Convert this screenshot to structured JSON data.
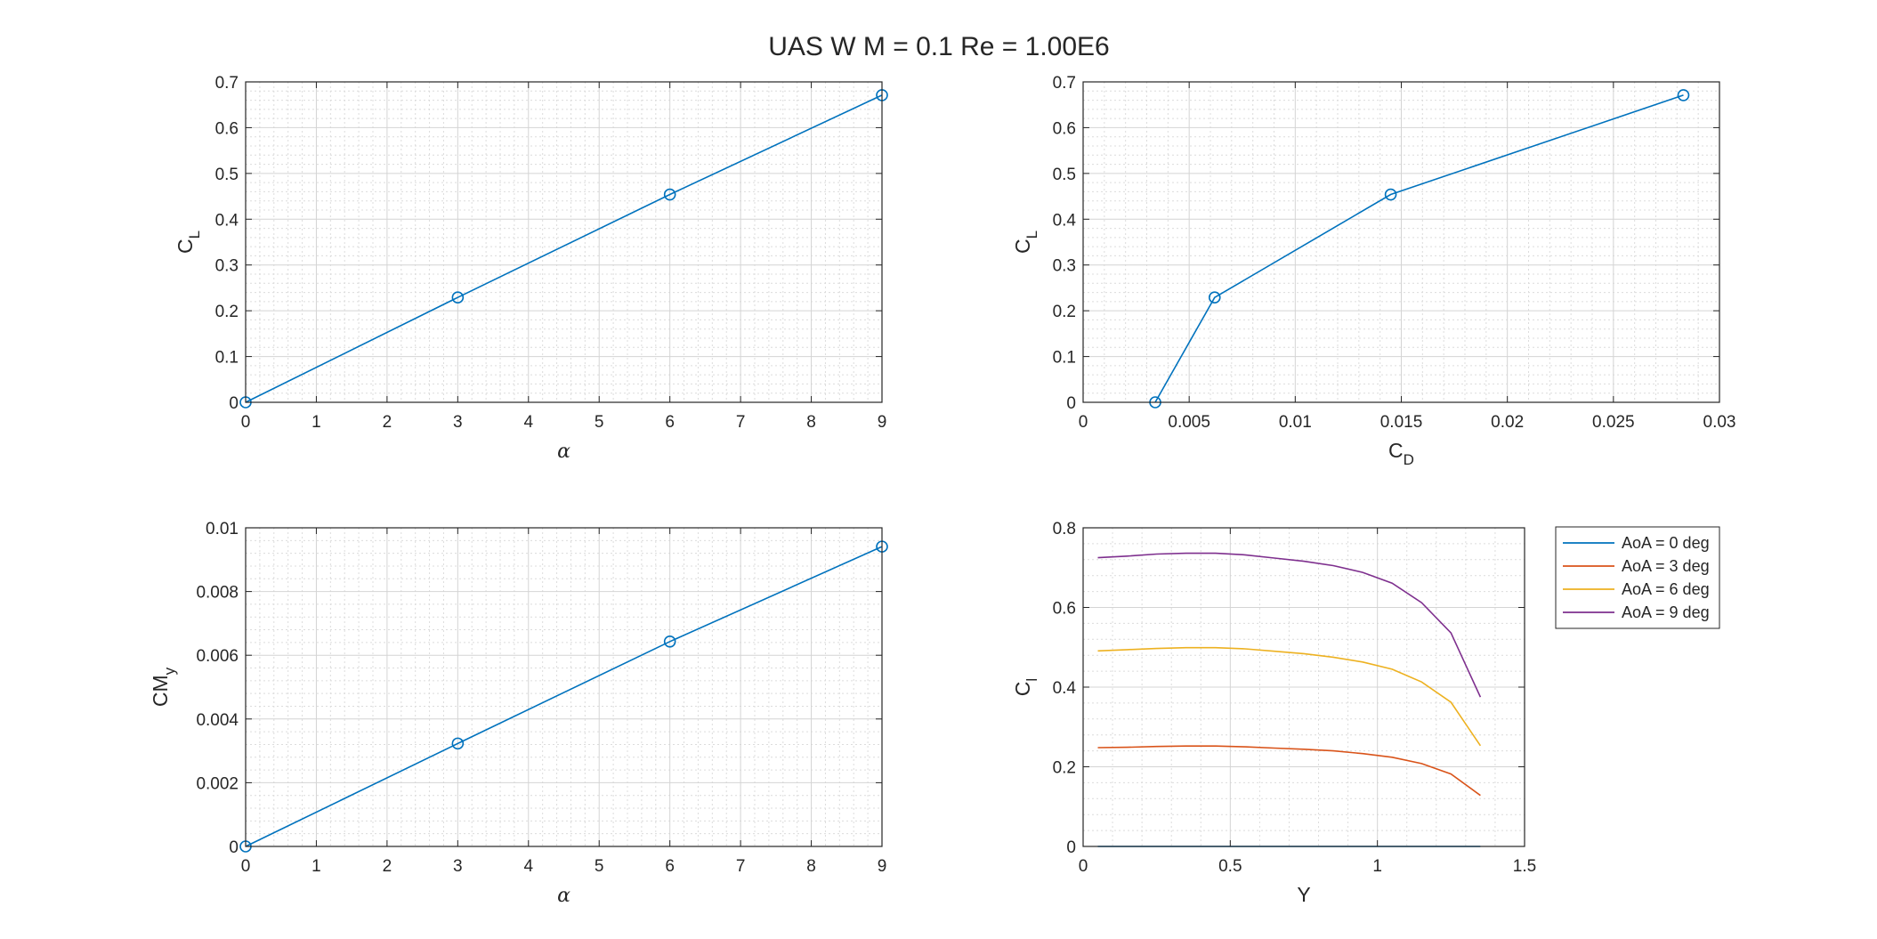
{
  "figure": {
    "title": "UAS  W  M = 0.1  Re = 1.00E6"
  },
  "chart_data": [
    {
      "id": "cl-alpha",
      "type": "line",
      "xlim": [
        0,
        9
      ],
      "ylim": [
        0,
        0.7
      ],
      "xticks": [
        "0",
        "1",
        "2",
        "3",
        "4",
        "5",
        "6",
        "7",
        "8",
        "9"
      ],
      "yticks": [
        "0",
        "0.1",
        "0.2",
        "0.3",
        "0.4",
        "0.5",
        "0.6",
        "0.7"
      ],
      "xlabel": "α",
      "ylabel": {
        "main": "C",
        "sub": "L"
      },
      "grid": true,
      "minor_grid": true,
      "series": [
        {
          "x": [
            0,
            3,
            6,
            9
          ],
          "y": [
            0,
            0.229,
            0.454,
            0.671
          ],
          "color": "#0072BD",
          "marker": "circle"
        }
      ]
    },
    {
      "id": "cl-cd",
      "type": "line",
      "xlim": [
        0,
        0.03
      ],
      "ylim": [
        0,
        0.7
      ],
      "xticks": [
        "0",
        "0.005",
        "0.01",
        "0.015",
        "0.02",
        "0.025",
        "0.03"
      ],
      "yticks": [
        "0",
        "0.1",
        "0.2",
        "0.3",
        "0.4",
        "0.5",
        "0.6",
        "0.7"
      ],
      "xlabel": {
        "main": "C",
        "sub": "D"
      },
      "ylabel": {
        "main": "C",
        "sub": "L"
      },
      "grid": true,
      "minor_grid": true,
      "series": [
        {
          "x": [
            0.0034,
            0.0062,
            0.0145,
            0.0283
          ],
          "y": [
            0,
            0.229,
            0.454,
            0.671
          ],
          "color": "#0072BD",
          "marker": "circle"
        }
      ]
    },
    {
      "id": "cmy-alpha",
      "type": "line",
      "xlim": [
        0,
        9
      ],
      "ylim": [
        0,
        0.01
      ],
      "xticks": [
        "0",
        "1",
        "2",
        "3",
        "4",
        "5",
        "6",
        "7",
        "8",
        "9"
      ],
      "yticks": [
        "0",
        "0.002",
        "0.004",
        "0.006",
        "0.008",
        "0.01"
      ],
      "xlabel": "α",
      "ylabel": {
        "main": "CM",
        "sub": "y"
      },
      "grid": true,
      "minor_grid": true,
      "series": [
        {
          "x": [
            0,
            3,
            6,
            9
          ],
          "y": [
            0,
            0.00323,
            0.00643,
            0.00941
          ],
          "color": "#0072BD",
          "marker": "circle"
        }
      ]
    },
    {
      "id": "cl-span",
      "type": "line",
      "xlim": [
        0,
        1.5
      ],
      "ylim": [
        0,
        0.8
      ],
      "xticks": [
        "0",
        "0.5",
        "1",
        "1.5"
      ],
      "yticks": [
        "0",
        "0.2",
        "0.4",
        "0.6",
        "0.8"
      ],
      "xlabel": "Y",
      "ylabel": {
        "main": "C",
        "sub": "l"
      },
      "grid": true,
      "minor_grid": true,
      "legend": "outside-top-right",
      "series": [
        {
          "name": "AoA = 0 deg",
          "color": "#0072BD",
          "x": [
            0.05,
            0.15,
            0.25,
            0.35,
            0.45,
            0.55,
            0.65,
            0.75,
            0.85,
            0.95,
            1.05,
            1.15,
            1.25,
            1.35
          ],
          "y": [
            0,
            0,
            0,
            0,
            0,
            0,
            0,
            0,
            0,
            0,
            0,
            0,
            0,
            0
          ]
        },
        {
          "name": "AoA = 3 deg",
          "color": "#D95319",
          "x": [
            0.05,
            0.15,
            0.25,
            0.35,
            0.45,
            0.55,
            0.65,
            0.75,
            0.85,
            0.95,
            1.05,
            1.15,
            1.25,
            1.35
          ],
          "y": [
            0.248,
            0.249,
            0.251,
            0.252,
            0.252,
            0.25,
            0.247,
            0.244,
            0.24,
            0.233,
            0.224,
            0.208,
            0.182,
            0.128
          ]
        },
        {
          "name": "AoA = 6 deg",
          "color": "#EDB120",
          "x": [
            0.05,
            0.15,
            0.25,
            0.35,
            0.45,
            0.55,
            0.65,
            0.75,
            0.85,
            0.95,
            1.05,
            1.15,
            1.25,
            1.35
          ],
          "y": [
            0.491,
            0.494,
            0.497,
            0.499,
            0.499,
            0.496,
            0.49,
            0.484,
            0.475,
            0.463,
            0.445,
            0.413,
            0.362,
            0.253
          ]
        },
        {
          "name": "AoA = 9 deg",
          "color": "#7E2F8E",
          "x": [
            0.05,
            0.15,
            0.25,
            0.35,
            0.45,
            0.55,
            0.65,
            0.75,
            0.85,
            0.95,
            1.05,
            1.15,
            1.25,
            1.35
          ],
          "y": [
            0.725,
            0.729,
            0.734,
            0.736,
            0.736,
            0.732,
            0.724,
            0.716,
            0.705,
            0.688,
            0.661,
            0.612,
            0.536,
            0.375
          ]
        }
      ]
    }
  ]
}
